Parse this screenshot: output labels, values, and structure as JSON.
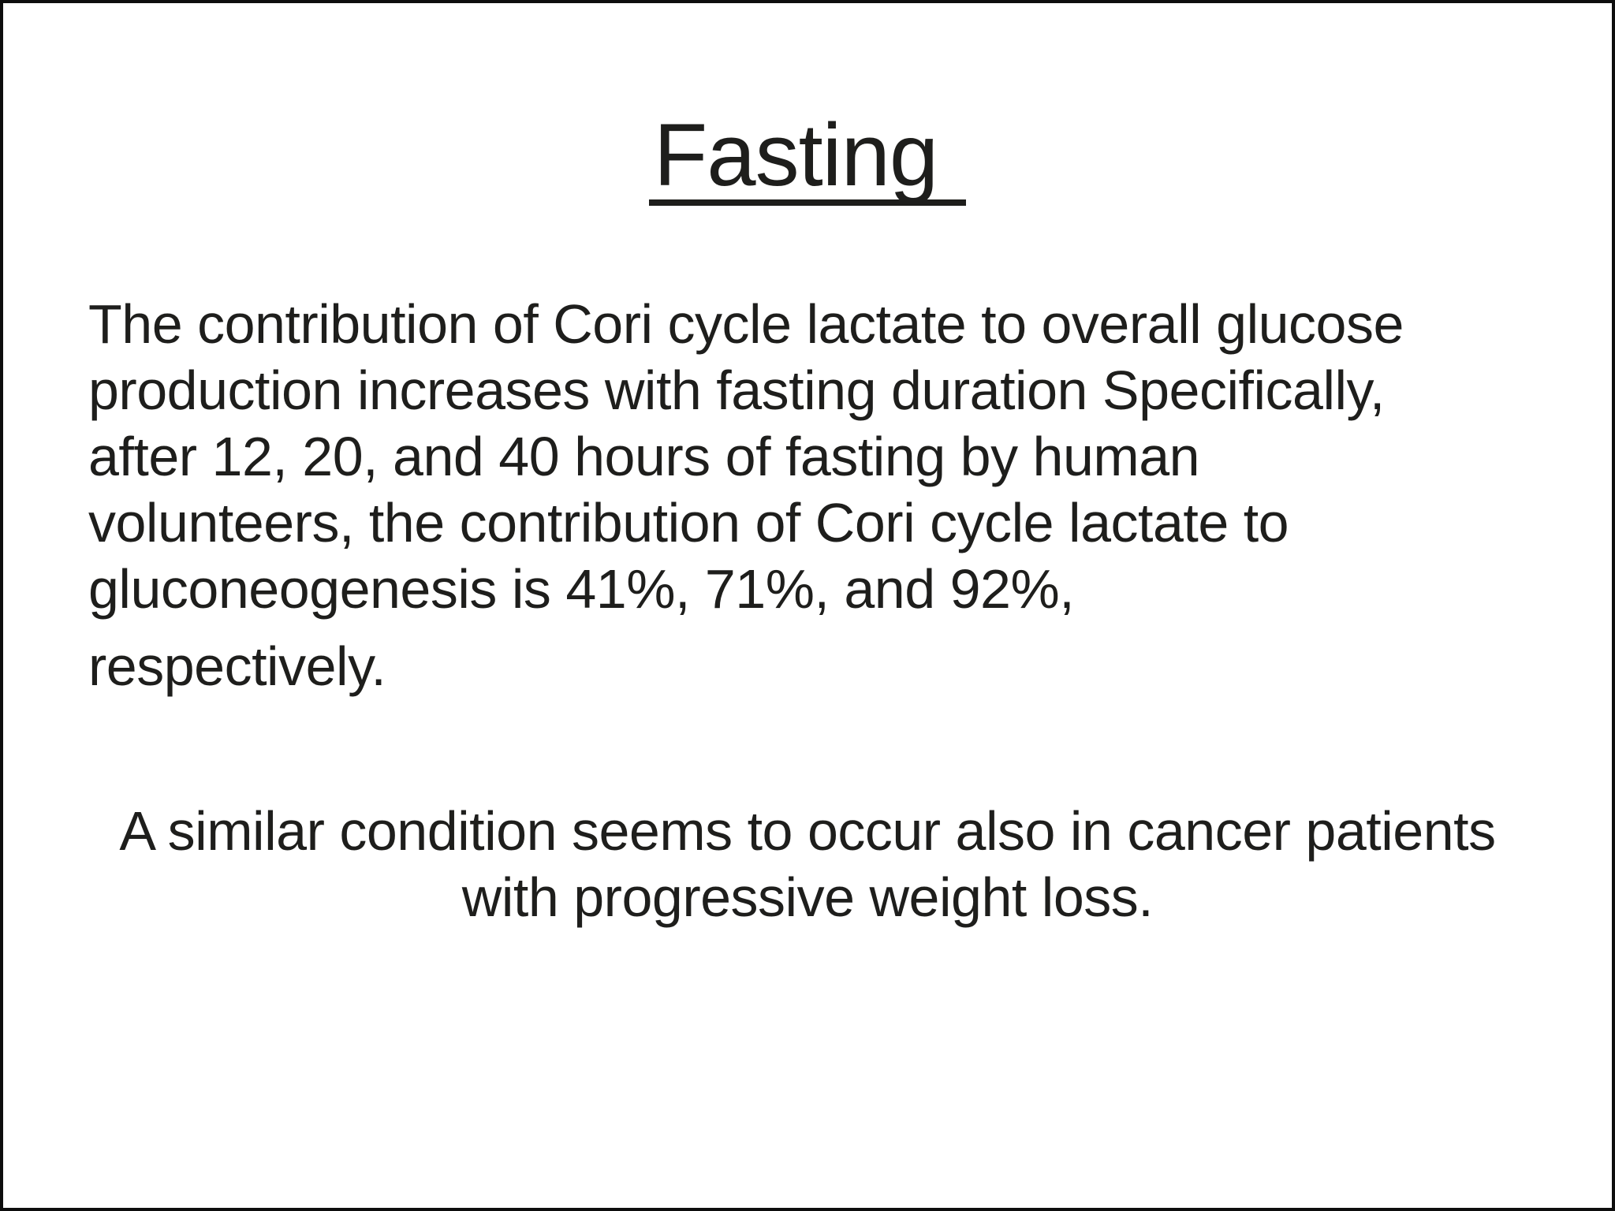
{
  "slide": {
    "background_color": "#ffffff",
    "border_color": "#0d0d0d",
    "text_color": "#1e1e1c",
    "title": "Fasting",
    "body": {
      "lines": [
        "The contribution of Cori cycle lactate to overall glucose",
        "production increases with fasting duration Specifically,",
        "after 12, 20, and 40 hours of fasting by human",
        "volunteers, the contribution of Cori cycle lactate to",
        "gluconeogenesis is 41%, 71%, and 92%,"
      ],
      "last_line": "respectively."
    },
    "closing": {
      "lines": [
        "A similar condition seems to occur also in cancer patients",
        "with progressive weight loss."
      ]
    }
  }
}
